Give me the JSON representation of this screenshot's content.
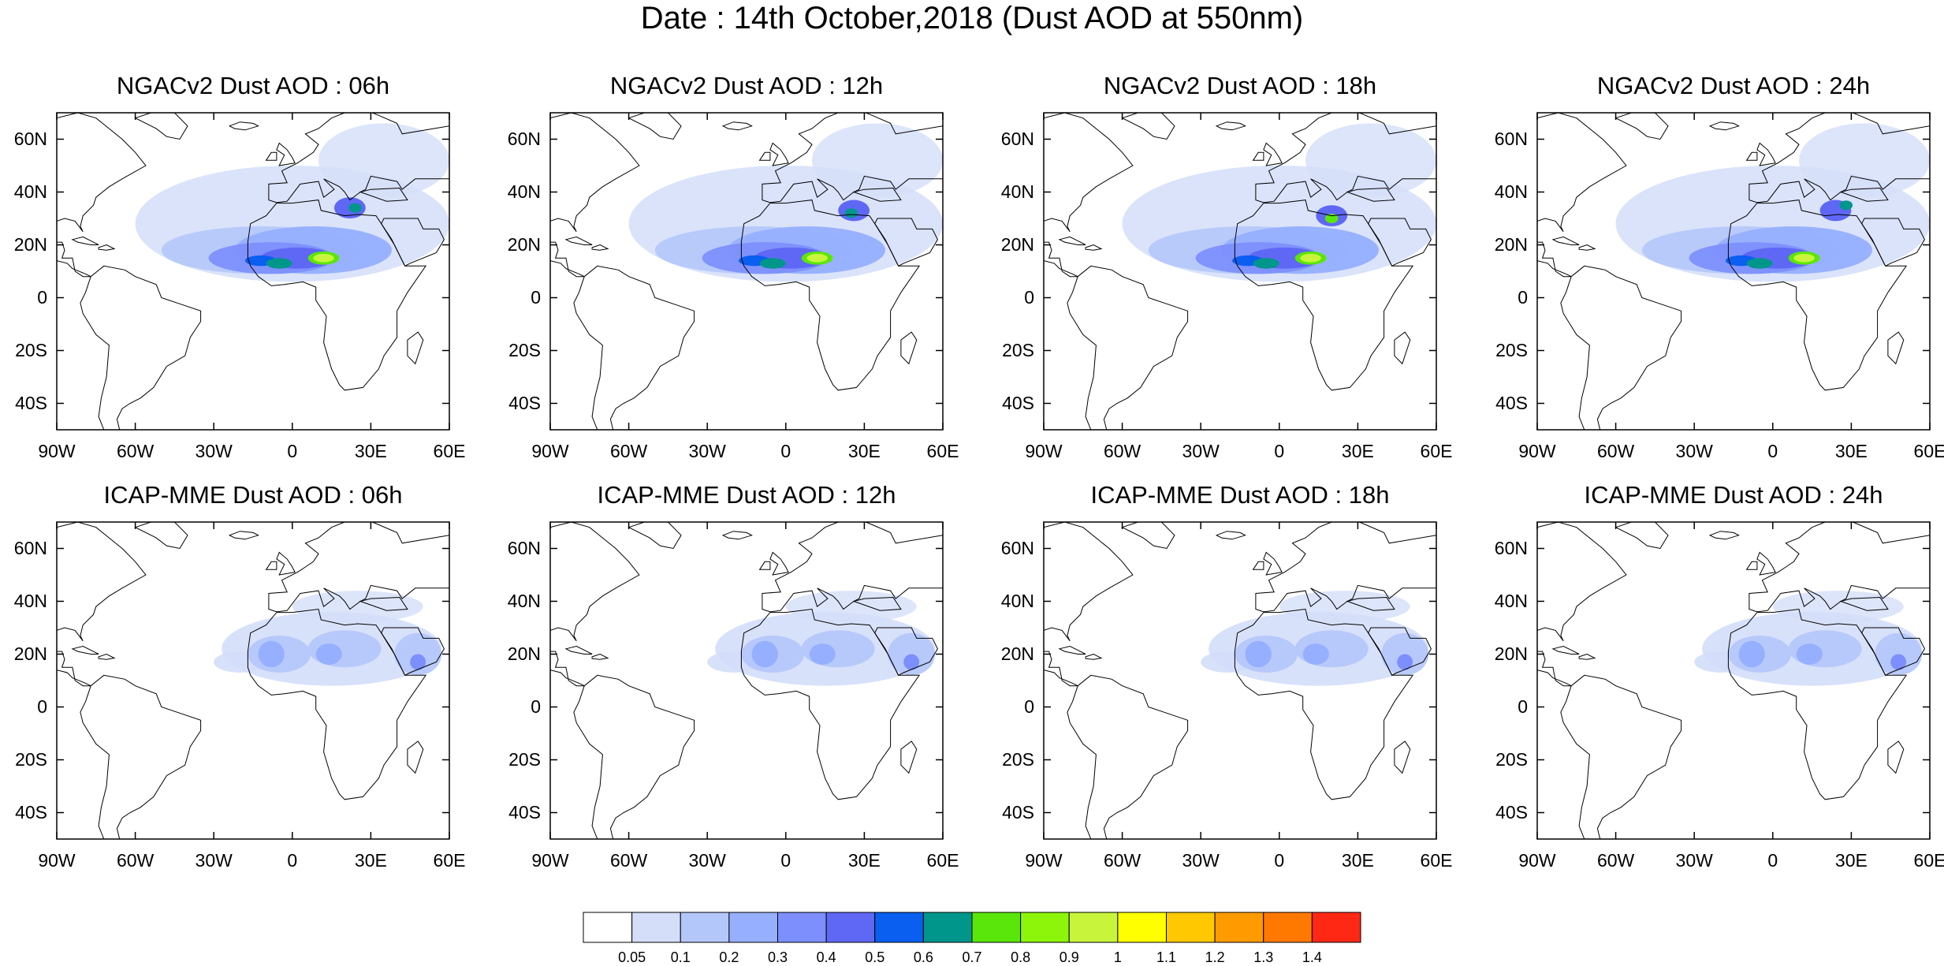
{
  "title": "Date : 14th October,2018 (Dust AOD at 550nm)",
  "panels": [
    {
      "title": "NGACv2 Dust AOD : 06h",
      "model": "NGACv2",
      "hour": "06h"
    },
    {
      "title": "NGACv2 Dust AOD : 12h",
      "model": "NGACv2",
      "hour": "12h"
    },
    {
      "title": "NGACv2 Dust AOD : 18h",
      "model": "NGACv2",
      "hour": "18h"
    },
    {
      "title": "NGACv2 Dust AOD : 24h",
      "model": "NGACv2",
      "hour": "24h"
    },
    {
      "title": "ICAP-MME Dust AOD : 06h",
      "model": "ICAP-MME",
      "hour": "06h"
    },
    {
      "title": "ICAP-MME Dust AOD : 12h",
      "model": "ICAP-MME",
      "hour": "12h"
    },
    {
      "title": "ICAP-MME Dust AOD : 18h",
      "model": "ICAP-MME",
      "hour": "18h"
    },
    {
      "title": "ICAP-MME Dust AOD : 24h",
      "model": "ICAP-MME",
      "hour": "24h"
    }
  ],
  "map": {
    "lon_range": [
      -90,
      60
    ],
    "lat_range": [
      -50,
      70
    ],
    "lon_ticks": [
      "90W",
      "60W",
      "30W",
      "0",
      "30E",
      "60E"
    ],
    "lat_ticks": [
      "60N",
      "40N",
      "20N",
      "0",
      "20S",
      "40S"
    ]
  },
  "colorbar": {
    "labels": [
      "0.05",
      "0.1",
      "0.2",
      "0.3",
      "0.4",
      "0.5",
      "0.6",
      "0.7",
      "0.8",
      "0.9",
      "1",
      "1.1",
      "1.2",
      "1.3",
      "1.4"
    ],
    "colors": [
      "#ffffff",
      "#d4def9",
      "#b4c7fa",
      "#96afff",
      "#7d8ffc",
      "#5f68f4",
      "#0a5ef0",
      "#00968c",
      "#5ae60a",
      "#8cf50a",
      "#c8f53c",
      "#ffff00",
      "#ffc800",
      "#ff9b00",
      "#ff7800",
      "#ff2814"
    ]
  }
}
